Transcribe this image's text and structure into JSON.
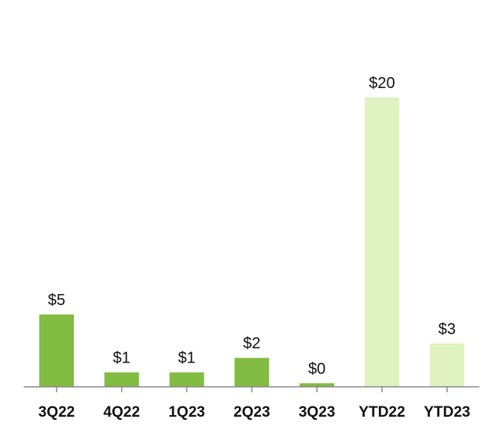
{
  "chart_data": {
    "type": "bar",
    "title": "",
    "xlabel": "",
    "ylabel": "",
    "categories": [
      "3Q22",
      "4Q22",
      "1Q23",
      "2Q23",
      "3Q23",
      "YTD22",
      "YTD23"
    ],
    "values": [
      5,
      1,
      1,
      2,
      0.25,
      20,
      3
    ],
    "data_labels": [
      "$5",
      "$1",
      "$1",
      "$2",
      "$0",
      "$20",
      "$3"
    ],
    "ylim": [
      0,
      20
    ],
    "grid": false,
    "colors": {
      "quarterly": "#82bc42",
      "ytd": "#dff2c0",
      "axis": "#8a8a8a",
      "text": "#111111"
    },
    "bar_color_keys": [
      "quarterly",
      "quarterly",
      "quarterly",
      "quarterly",
      "quarterly",
      "ytd",
      "ytd"
    ]
  }
}
